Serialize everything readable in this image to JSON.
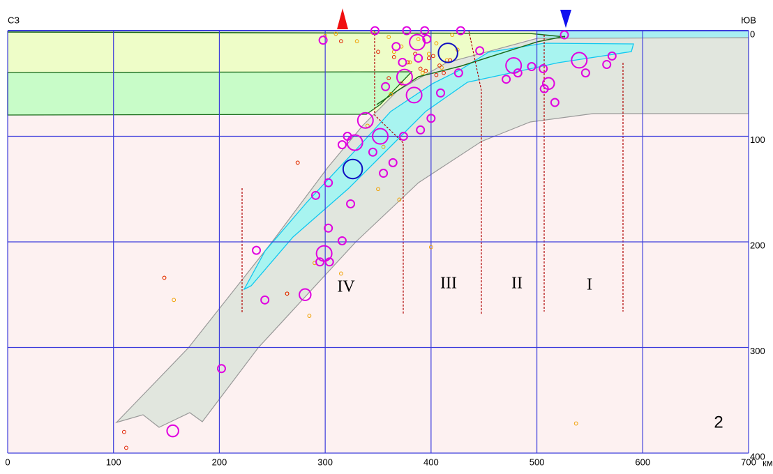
{
  "chart_data": {
    "type": "scatter",
    "left_label": "СЗ",
    "right_label": "ЮВ",
    "x_unit": "км",
    "panel_label": "2",
    "annotations": [
      "IV",
      "III",
      "II",
      "I"
    ],
    "xlim": [
      0,
      700
    ],
    "ylim": [
      0,
      400
    ],
    "y_inverted": true,
    "xticks": [
      0,
      100,
      200,
      300,
      400,
      500,
      600,
      700
    ],
    "yticks": [
      0,
      100,
      200,
      300,
      400
    ],
    "grid": true,
    "grid_color": "#3c3cdc",
    "series": [
      {
        "color": "#f0a000",
        "x": [
          148,
          157,
          274,
          264,
          400,
          537,
          300,
          310,
          330,
          345,
          360,
          365,
          372,
          380,
          388,
          392,
          398,
          405,
          410,
          415,
          420,
          425,
          290,
          315,
          350,
          340,
          370,
          285,
          355,
          362
        ],
        "values": [
          234,
          255,
          125,
          249,
          205,
          372,
          5,
          3,
          10,
          2,
          6,
          20,
          15,
          30,
          8,
          40,
          22,
          12,
          35,
          28,
          4,
          18,
          220,
          230,
          150,
          90,
          160,
          270,
          110,
          60
        ]
      },
      {
        "color": "#e02000",
        "x": [
          110,
          112,
          148,
          274,
          264,
          315,
          350,
          365,
          378,
          385,
          395,
          402,
          408,
          412,
          418,
          360,
          372,
          390,
          398,
          405
        ],
        "values": [
          380,
          395,
          234,
          125,
          249,
          10,
          20,
          25,
          30,
          22,
          38,
          24,
          33,
          40,
          28,
          45,
          50,
          36,
          26,
          42
        ]
      },
      {
        "color": "#e000e0",
        "x": [
          299,
          540,
          478,
          338,
          352,
          328,
          384,
          375,
          387,
          511,
          156,
          281,
          347,
          377,
          394,
          428,
          298,
          367,
          396,
          446,
          482,
          495,
          506,
          526,
          546,
          571,
          566,
          517,
          507,
          471,
          409,
          357,
          321,
          316,
          303,
          291,
          324,
          303,
          316,
          235,
          295,
          304,
          243,
          202,
          355,
          364,
          345,
          374,
          390,
          400,
          426,
          388,
          373
        ],
        "values": [
          211,
          28,
          33,
          85,
          100,
          106,
          61,
          44,
          11,
          50,
          379,
          250,
          0,
          0,
          0,
          0,
          9,
          15,
          8,
          19,
          40,
          34,
          36,
          4,
          40,
          24,
          32,
          68,
          55,
          46,
          59,
          53,
          100,
          108,
          144,
          156,
          164,
          187,
          199,
          208,
          219,
          219,
          255,
          320,
          135,
          125,
          115,
          100,
          94,
          83,
          40,
          26,
          30
        ],
        "sizes": [
          6,
          6,
          6,
          6,
          6,
          6,
          6,
          6,
          6,
          5.5,
          5.5,
          5.5,
          5,
          5,
          5,
          5,
          5,
          5,
          5,
          5,
          5,
          5,
          5,
          5,
          5,
          5,
          5,
          5,
          5,
          5,
          5,
          5,
          5,
          5,
          5,
          5,
          5,
          5,
          5,
          5,
          5,
          5,
          5,
          5,
          5,
          5,
          5,
          5,
          5,
          5,
          5,
          5,
          5
        ]
      },
      {
        "color": "#1010c0",
        "x": [
          416,
          326
        ],
        "values": [
          21,
          131
        ],
        "sizes": [
          6.5,
          6.5
        ]
      }
    ]
  }
}
